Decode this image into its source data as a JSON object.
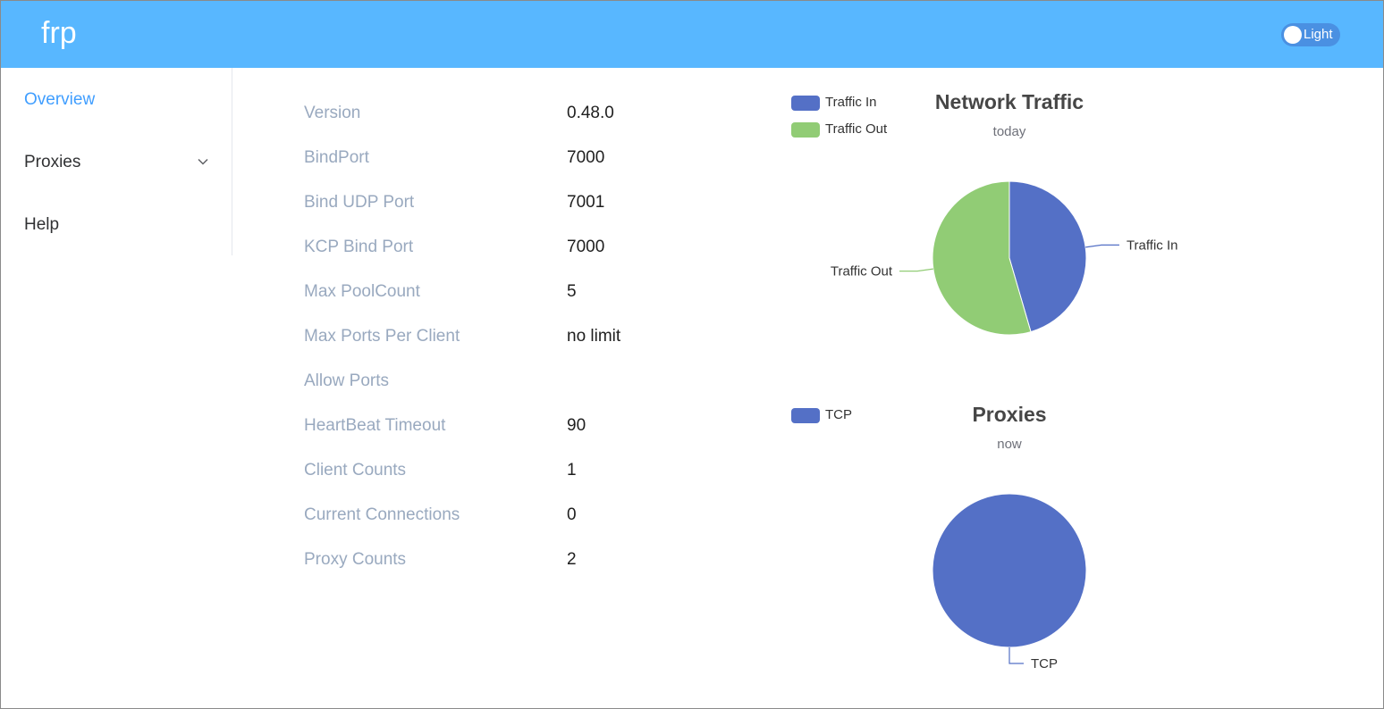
{
  "header": {
    "brand": "frp",
    "theme_toggle_label": "Light"
  },
  "sidebar": {
    "items": [
      {
        "label": "Overview",
        "active": true
      },
      {
        "label": "Proxies",
        "has_submenu": true
      },
      {
        "label": "Help"
      }
    ]
  },
  "server_info": [
    {
      "label": "Version",
      "value": "0.48.0"
    },
    {
      "label": "BindPort",
      "value": "7000"
    },
    {
      "label": "Bind UDP Port",
      "value": "7001"
    },
    {
      "label": "KCP Bind Port",
      "value": "7000"
    },
    {
      "label": "Max PoolCount",
      "value": "5"
    },
    {
      "label": "Max Ports Per Client",
      "value": "no limit"
    },
    {
      "label": "Allow Ports",
      "value": ""
    },
    {
      "label": "HeartBeat Timeout",
      "value": "90"
    },
    {
      "label": "Client Counts",
      "value": "1"
    },
    {
      "label": "Current Connections",
      "value": "0"
    },
    {
      "label": "Proxy Counts",
      "value": "2"
    }
  ],
  "colors": {
    "header_bg": "#58b7ff",
    "accent": "#409eff",
    "series_blue": "#5470c6",
    "series_green": "#91cc75"
  },
  "chart_data": [
    {
      "type": "pie",
      "title": "Network Traffic",
      "subtitle": "today",
      "legend": [
        "Traffic In",
        "Traffic Out"
      ],
      "legend_position": "top-left",
      "series": [
        {
          "name": "Traffic In",
          "value": 45.5,
          "color": "#5470c6"
        },
        {
          "name": "Traffic Out",
          "value": 54.5,
          "color": "#91cc75"
        }
      ]
    },
    {
      "type": "pie",
      "title": "Proxies",
      "subtitle": "now",
      "legend": [
        "TCP"
      ],
      "legend_position": "top-left",
      "series": [
        {
          "name": "TCP",
          "value": 2,
          "color": "#5470c6"
        }
      ]
    }
  ]
}
